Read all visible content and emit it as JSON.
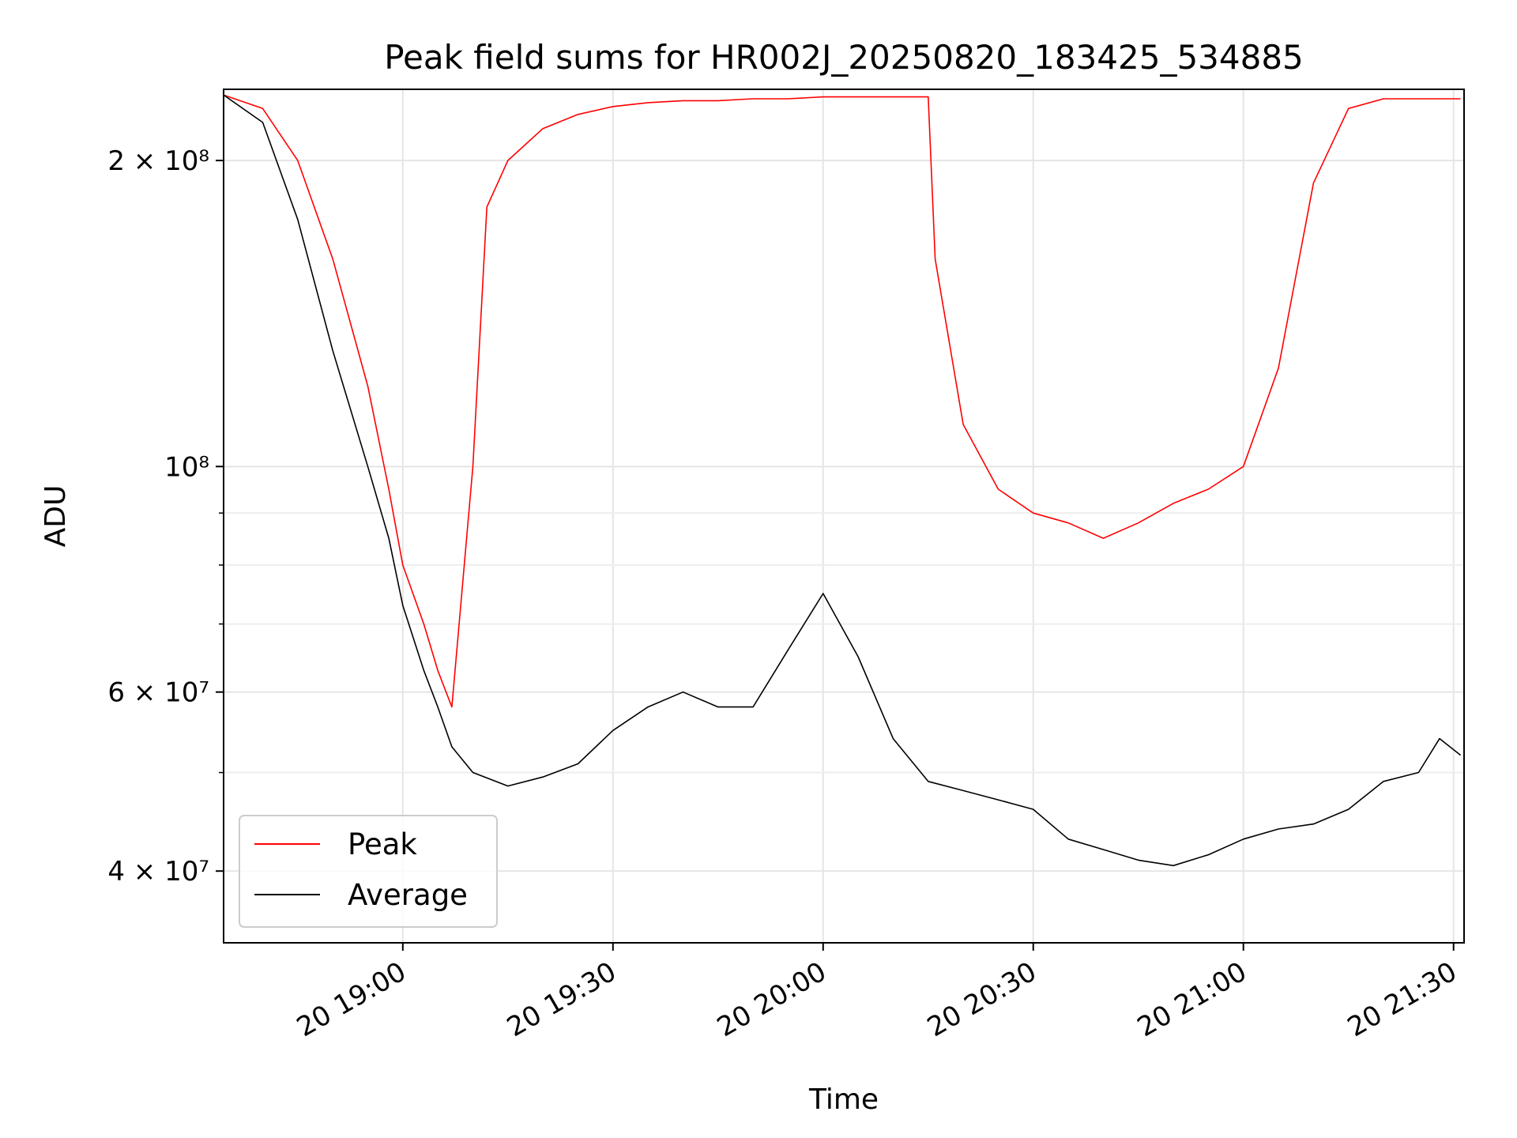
{
  "chart_data": {
    "type": "line",
    "title": "Peak field sums for HR002J_20250820_183425_534885",
    "xlabel": "Time",
    "ylabel": "ADU",
    "yscale": "log",
    "xlim": [
      "2025-08-20 18:34:25",
      "2025-08-20 21:31:30"
    ],
    "ylim": [
      34000000,
      235000000
    ],
    "grid": true,
    "legend_position": "lower-left",
    "x_ticks": [
      {
        "t": "2025-08-20 19:00:00",
        "label": "20 19:00"
      },
      {
        "t": "2025-08-20 19:30:00",
        "label": "20 19:30"
      },
      {
        "t": "2025-08-20 20:00:00",
        "label": "20 20:00"
      },
      {
        "t": "2025-08-20 20:30:00",
        "label": "20 20:30"
      },
      {
        "t": "2025-08-20 21:00:00",
        "label": "20 21:00"
      },
      {
        "t": "2025-08-20 21:30:00",
        "label": "20 21:30"
      }
    ],
    "y_ticks": [
      {
        "value": 40000000,
        "label": "4 × 10⁷"
      },
      {
        "value": 60000000,
        "label": "6 × 10⁷"
      },
      {
        "value": 100000000,
        "label": "10⁸"
      },
      {
        "value": 200000000,
        "label": "2 × 10⁸"
      }
    ],
    "y_minor_ticks": [
      50000000,
      70000000,
      80000000,
      90000000
    ],
    "series": [
      {
        "name": "Peak",
        "color": "#ff0000",
        "x": [
          "18:34:25",
          "18:40:00",
          "18:45:00",
          "18:50:00",
          "18:55:00",
          "18:58:00",
          "19:00:00",
          "19:03:00",
          "19:05:00",
          "19:07:00",
          "19:10:00",
          "19:12:00",
          "19:15:00",
          "19:20:00",
          "19:25:00",
          "19:30:00",
          "19:35:00",
          "19:40:00",
          "19:45:00",
          "19:50:00",
          "19:55:00",
          "20:00:00",
          "20:05:00",
          "20:10:00",
          "20:15:00",
          "20:16:00",
          "20:20:00",
          "20:25:00",
          "20:30:00",
          "20:35:00",
          "20:40:00",
          "20:45:00",
          "20:50:00",
          "20:55:00",
          "21:00:00",
          "21:05:00",
          "21:10:00",
          "21:15:00",
          "21:20:00",
          "21:25:00",
          "21:28:00",
          "21:31:00"
        ],
        "y": [
          232000000,
          225000000,
          200000000,
          160000000,
          120000000,
          95000000,
          80000000,
          70000000,
          63000000,
          58000000,
          100000000,
          180000000,
          200000000,
          215000000,
          222000000,
          226000000,
          228000000,
          229000000,
          229000000,
          230000000,
          230000000,
          231000000,
          231000000,
          231000000,
          231000000,
          160000000,
          110000000,
          95000000,
          90000000,
          88000000,
          85000000,
          88000000,
          92000000,
          95000000,
          100000000,
          125000000,
          190000000,
          225000000,
          230000000,
          230000000,
          230000000,
          230000000
        ]
      },
      {
        "name": "Average",
        "color": "#000000",
        "x": [
          "18:34:25",
          "18:40:00",
          "18:45:00",
          "18:50:00",
          "18:55:00",
          "18:58:00",
          "19:00:00",
          "19:03:00",
          "19:05:00",
          "19:07:00",
          "19:10:00",
          "19:15:00",
          "19:20:00",
          "19:25:00",
          "19:30:00",
          "19:35:00",
          "19:40:00",
          "19:45:00",
          "19:50:00",
          "19:55:00",
          "20:00:00",
          "20:05:00",
          "20:10:00",
          "20:15:00",
          "20:20:00",
          "20:25:00",
          "20:30:00",
          "20:35:00",
          "20:40:00",
          "20:45:00",
          "20:50:00",
          "20:55:00",
          "21:00:00",
          "21:05:00",
          "21:10:00",
          "21:15:00",
          "21:20:00",
          "21:25:00",
          "21:28:00",
          "21:31:00"
        ],
        "y": [
          232000000,
          218000000,
          175000000,
          130000000,
          100000000,
          85000000,
          73000000,
          63000000,
          58000000,
          53000000,
          50000000,
          48500000,
          49500000,
          51000000,
          55000000,
          58000000,
          60000000,
          58000000,
          58000000,
          66000000,
          75000000,
          65000000,
          54000000,
          49000000,
          48000000,
          47000000,
          46000000,
          43000000,
          42000000,
          41000000,
          40500000,
          41500000,
          43000000,
          44000000,
          44500000,
          46000000,
          49000000,
          50000000,
          54000000,
          52000000
        ]
      }
    ]
  }
}
